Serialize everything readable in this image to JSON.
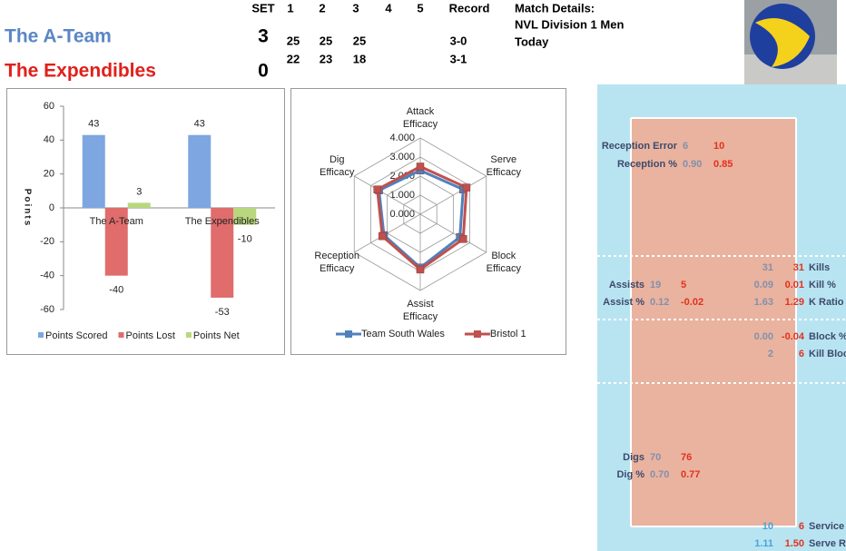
{
  "scoreboard": {
    "header": [
      "SET",
      "1",
      "2",
      "3",
      "4",
      "5",
      "Record"
    ],
    "teams": [
      {
        "name": "The A-Team",
        "sets_won": 3,
        "scores": [
          25,
          25,
          25
        ],
        "record": "3-0"
      },
      {
        "name": "The Expendibles",
        "sets_won": 0,
        "scores": [
          22,
          23,
          18
        ],
        "record": "3-1"
      }
    ]
  },
  "match_details": {
    "title": "Match Details:",
    "competition": "NVL Division 1 Men",
    "date": "Today"
  },
  "chart_data": [
    {
      "type": "bar",
      "y_label": "Points",
      "categories": [
        "The A-Team",
        "The Expendibles"
      ],
      "series": [
        {
          "name": "Points Scored",
          "color": "#7ea6e0",
          "values": [
            43,
            43
          ]
        },
        {
          "name": "Points Lost",
          "color": "#e06c6c",
          "values": [
            -40,
            -53
          ]
        },
        {
          "name": "Points Net",
          "color": "#b8d77e",
          "values": [
            3,
            -10
          ]
        }
      ],
      "ylim": [
        -60,
        60
      ],
      "yticks": [
        -60,
        -40,
        -20,
        0,
        20,
        40,
        60
      ],
      "legend": "bottom"
    },
    {
      "type": "radar",
      "categories": [
        "Attack Efficacy",
        "Serve Efficacy",
        "Block Efficacy",
        "Assist Efficacy",
        "Reception Efficacy",
        "Dig Efficacy"
      ],
      "series": [
        {
          "name": "Team South Wales",
          "color": "#4f81bd",
          "values": [
            2.3,
            2.6,
            2.4,
            2.8,
            2.2,
            2.5
          ]
        },
        {
          "name": "Bristol 1",
          "color": "#c0504d",
          "values": [
            2.5,
            2.8,
            2.6,
            2.9,
            2.3,
            2.6
          ]
        }
      ],
      "rlim": [
        0,
        4
      ],
      "rticks": [
        {
          "value": 0,
          "label": "0.000"
        },
        {
          "value": 1,
          "label": "1.000"
        },
        {
          "value": 2,
          "label": "2.000"
        },
        {
          "value": 3,
          "label": "3.000"
        },
        {
          "value": 4,
          "label": "4.000"
        }
      ],
      "legend": "bottom"
    }
  ],
  "court_stats": [
    {
      "label": "Reception Error",
      "team1": "6",
      "team2": "10"
    },
    {
      "label": "Reception %",
      "team1": "0.90",
      "team2": "0.85"
    },
    {
      "label": "Kills",
      "team1": "31",
      "team2": "31"
    },
    {
      "label": "Assists",
      "team1": "19",
      "team2": "5"
    },
    {
      "label": "Kill %",
      "team1": "0.09",
      "team2": "0.01"
    },
    {
      "label": "Assist %",
      "team1": "0.12",
      "team2": "-0.02"
    },
    {
      "label": "K Ratio",
      "team1": "1.63",
      "team2": "1.29"
    },
    {
      "label": "Block %",
      "team1": "0.00",
      "team2": "-0.04"
    },
    {
      "label": "Kill Blocks",
      "team1": "2",
      "team2": "6"
    },
    {
      "label": "Digs",
      "team1": "70",
      "team2": "76"
    },
    {
      "label": "Dig %",
      "team1": "0.70",
      "team2": "0.77"
    },
    {
      "label": "Service Ace",
      "team1": "10",
      "team2": "6"
    },
    {
      "label": "Serve Ratio",
      "team1": "1.11",
      "team2": "1.50"
    }
  ]
}
